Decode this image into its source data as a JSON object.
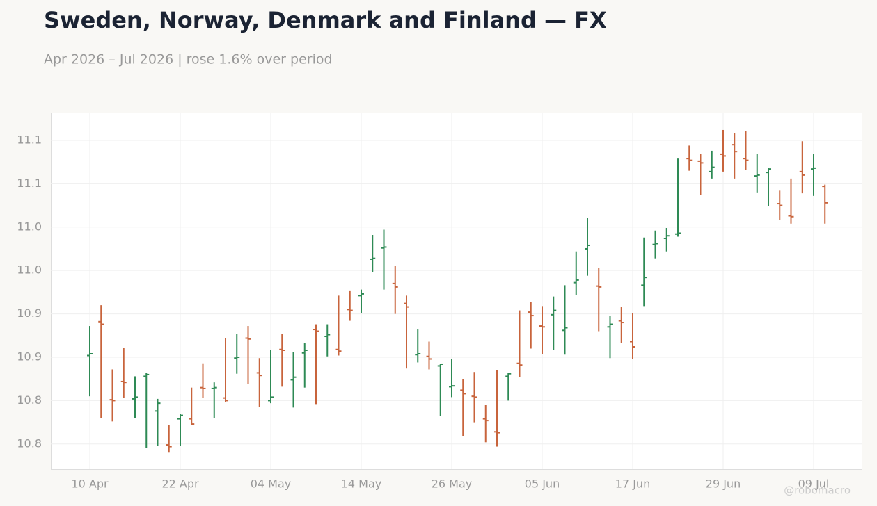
{
  "chart_data": {
    "type": "ohlc",
    "title": "Sweden, Norway, Denmark and Finland — FX",
    "subtitle": "Apr 2026 – Jul 2026 | rose 1.6% over period",
    "watermark": "@robomacro",
    "up_color": "#2e8a55",
    "down_color": "#c8643c",
    "grid": true,
    "ylim": [
      10.746,
      11.157
    ],
    "yticks": [
      {
        "value": 10.775,
        "label": "10.8"
      },
      {
        "value": 10.825,
        "label": "10.8"
      },
      {
        "value": 10.875,
        "label": "10.9"
      },
      {
        "value": 10.925,
        "label": "10.9"
      },
      {
        "value": 10.975,
        "label": "11.0"
      },
      {
        "value": 11.025,
        "label": "11.0"
      },
      {
        "value": 11.075,
        "label": "11.1"
      },
      {
        "value": 11.125,
        "label": "11.1"
      }
    ],
    "categories": [
      "10 Apr",
      null,
      null,
      null,
      null,
      null,
      null,
      null,
      "22 Apr",
      null,
      null,
      null,
      null,
      null,
      null,
      null,
      "04 May",
      null,
      null,
      null,
      null,
      null,
      null,
      null,
      "14 May",
      null,
      null,
      null,
      null,
      null,
      null,
      null,
      "26 May",
      null,
      null,
      null,
      null,
      null,
      null,
      null,
      "05 Jun",
      null,
      null,
      null,
      null,
      null,
      null,
      null,
      "17 Jun",
      null,
      null,
      null,
      null,
      null,
      null,
      null,
      "29 Jun",
      null,
      null,
      null,
      null,
      null,
      null,
      null,
      "09 Jul",
      null
    ],
    "open": [
      10.877,
      10.916,
      10.826,
      10.847,
      10.827,
      10.853,
      10.813,
      10.774,
      10.804,
      10.804,
      10.84,
      10.839,
      10.828,
      10.874,
      10.897,
      10.857,
      10.825,
      10.884,
      10.849,
      10.88,
      10.907,
      10.899,
      10.884,
      10.93,
      10.946,
      10.988,
      11.001,
      10.96,
      10.937,
      10.878,
      10.876,
      10.865,
      10.841,
      10.837,
      10.83,
      10.804,
      10.789,
      10.853,
      10.868,
      10.927,
      10.911,
      10.924,
      10.906,
      10.961,
      11.0,
      10.957,
      10.91,
      10.917,
      10.893,
      10.958,
      11.005,
      11.012,
      11.017,
      11.104,
      11.101,
      11.089,
      11.109,
      11.12,
      11.104,
      11.084,
      11.088,
      11.052,
      11.038,
      11.089,
      11.092,
      11.072
    ],
    "high": [
      10.911,
      10.935,
      10.861,
      10.886,
      10.853,
      10.857,
      10.827,
      10.797,
      10.81,
      10.84,
      10.868,
      10.846,
      10.897,
      10.902,
      10.911,
      10.874,
      10.883,
      10.902,
      10.881,
      10.891,
      10.913,
      10.913,
      10.946,
      10.952,
      10.953,
      11.016,
      11.022,
      10.98,
      10.946,
      10.907,
      10.893,
      10.867,
      10.873,
      10.85,
      10.858,
      10.82,
      10.86,
      10.857,
      10.929,
      10.939,
      10.934,
      10.945,
      10.958,
      10.997,
      11.036,
      10.978,
      10.923,
      10.933,
      10.926,
      11.013,
      11.021,
      11.024,
      11.104,
      11.119,
      11.109,
      11.113,
      11.137,
      11.133,
      11.136,
      11.109,
      11.093,
      11.067,
      11.081,
      11.124,
      11.109,
      11.074
    ],
    "low": [
      10.83,
      10.805,
      10.801,
      10.828,
      10.805,
      10.77,
      10.773,
      10.765,
      10.773,
      10.797,
      10.828,
      10.805,
      10.823,
      10.856,
      10.844,
      10.818,
      10.822,
      10.841,
      10.817,
      10.84,
      10.821,
      10.876,
      10.877,
      10.917,
      10.926,
      10.973,
      10.953,
      10.925,
      10.862,
      10.869,
      10.861,
      10.807,
      10.829,
      10.784,
      10.8,
      10.777,
      10.772,
      10.825,
      10.852,
      10.885,
      10.879,
      10.883,
      10.878,
      10.947,
      10.969,
      10.905,
      10.874,
      10.891,
      10.873,
      10.934,
      10.989,
      10.997,
      11.014,
      11.09,
      11.062,
      11.081,
      11.089,
      11.081,
      11.091,
      11.065,
      11.049,
      11.033,
      11.029,
      11.064,
      11.061,
      11.029
    ],
    "close": [
      10.879,
      10.913,
      10.825,
      10.846,
      10.829,
      10.855,
      10.822,
      10.772,
      10.808,
      10.798,
      10.839,
      10.84,
      10.825,
      10.875,
      10.896,
      10.854,
      10.829,
      10.883,
      10.852,
      10.883,
      10.905,
      10.901,
      10.882,
      10.929,
      10.948,
      10.989,
      11.002,
      10.956,
      10.933,
      10.879,
      10.873,
      10.867,
      10.842,
      10.833,
      10.829,
      10.802,
      10.788,
      10.856,
      10.866,
      10.923,
      10.91,
      10.929,
      10.909,
      10.964,
      11.004,
      10.956,
      10.913,
      10.915,
      10.887,
      10.967,
      11.006,
      11.015,
      11.018,
      11.102,
      11.099,
      11.094,
      11.107,
      11.112,
      11.102,
      11.085,
      11.092,
      11.05,
      11.037,
      11.085,
      11.093,
      11.053
    ]
  }
}
